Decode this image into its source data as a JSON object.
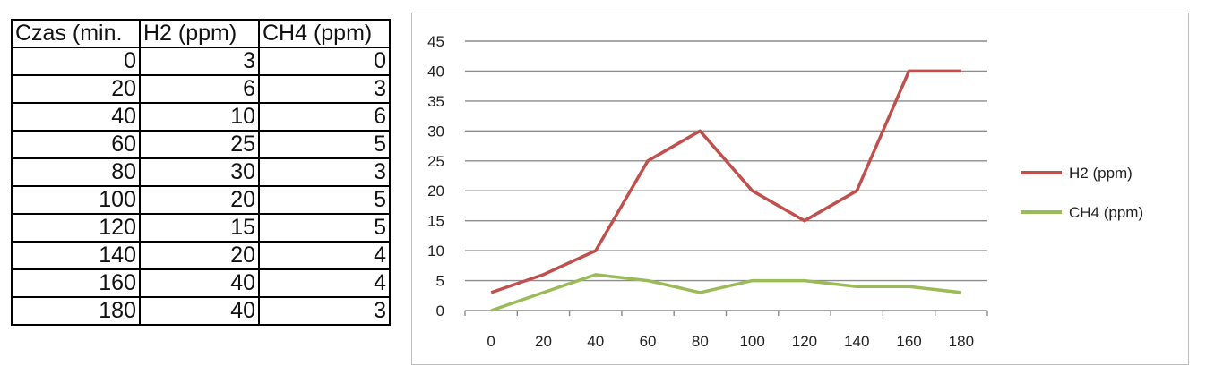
{
  "table": {
    "headers": [
      "Czas (min.",
      "H2 (ppm)",
      "CH4 (ppm)"
    ],
    "rows": [
      [
        "0",
        "3",
        "0"
      ],
      [
        "20",
        "6",
        "3"
      ],
      [
        "40",
        "10",
        "6"
      ],
      [
        "60",
        "25",
        "5"
      ],
      [
        "80",
        "30",
        "3"
      ],
      [
        "100",
        "20",
        "5"
      ],
      [
        "120",
        "15",
        "5"
      ],
      [
        "140",
        "20",
        "4"
      ],
      [
        "160",
        "40",
        "4"
      ],
      [
        "180",
        "40",
        "3"
      ]
    ]
  },
  "chart_data": {
    "type": "line",
    "title": "",
    "xlabel": "",
    "ylabel": "",
    "categories": [
      "0",
      "20",
      "40",
      "60",
      "80",
      "100",
      "120",
      "140",
      "160",
      "180"
    ],
    "series": [
      {
        "name": "H2 (ppm)",
        "values": [
          3,
          6,
          10,
          25,
          30,
          20,
          15,
          20,
          40,
          40
        ],
        "color": "#c0504d"
      },
      {
        "name": "CH4 (ppm)",
        "values": [
          0,
          3,
          6,
          5,
          3,
          5,
          5,
          4,
          4,
          3
        ],
        "color": "#9bbb59"
      }
    ],
    "ylim": [
      0,
      45
    ],
    "yticks": [
      0,
      5,
      10,
      15,
      20,
      25,
      30,
      35,
      40,
      45
    ],
    "grid": true,
    "legend_position": "right"
  }
}
